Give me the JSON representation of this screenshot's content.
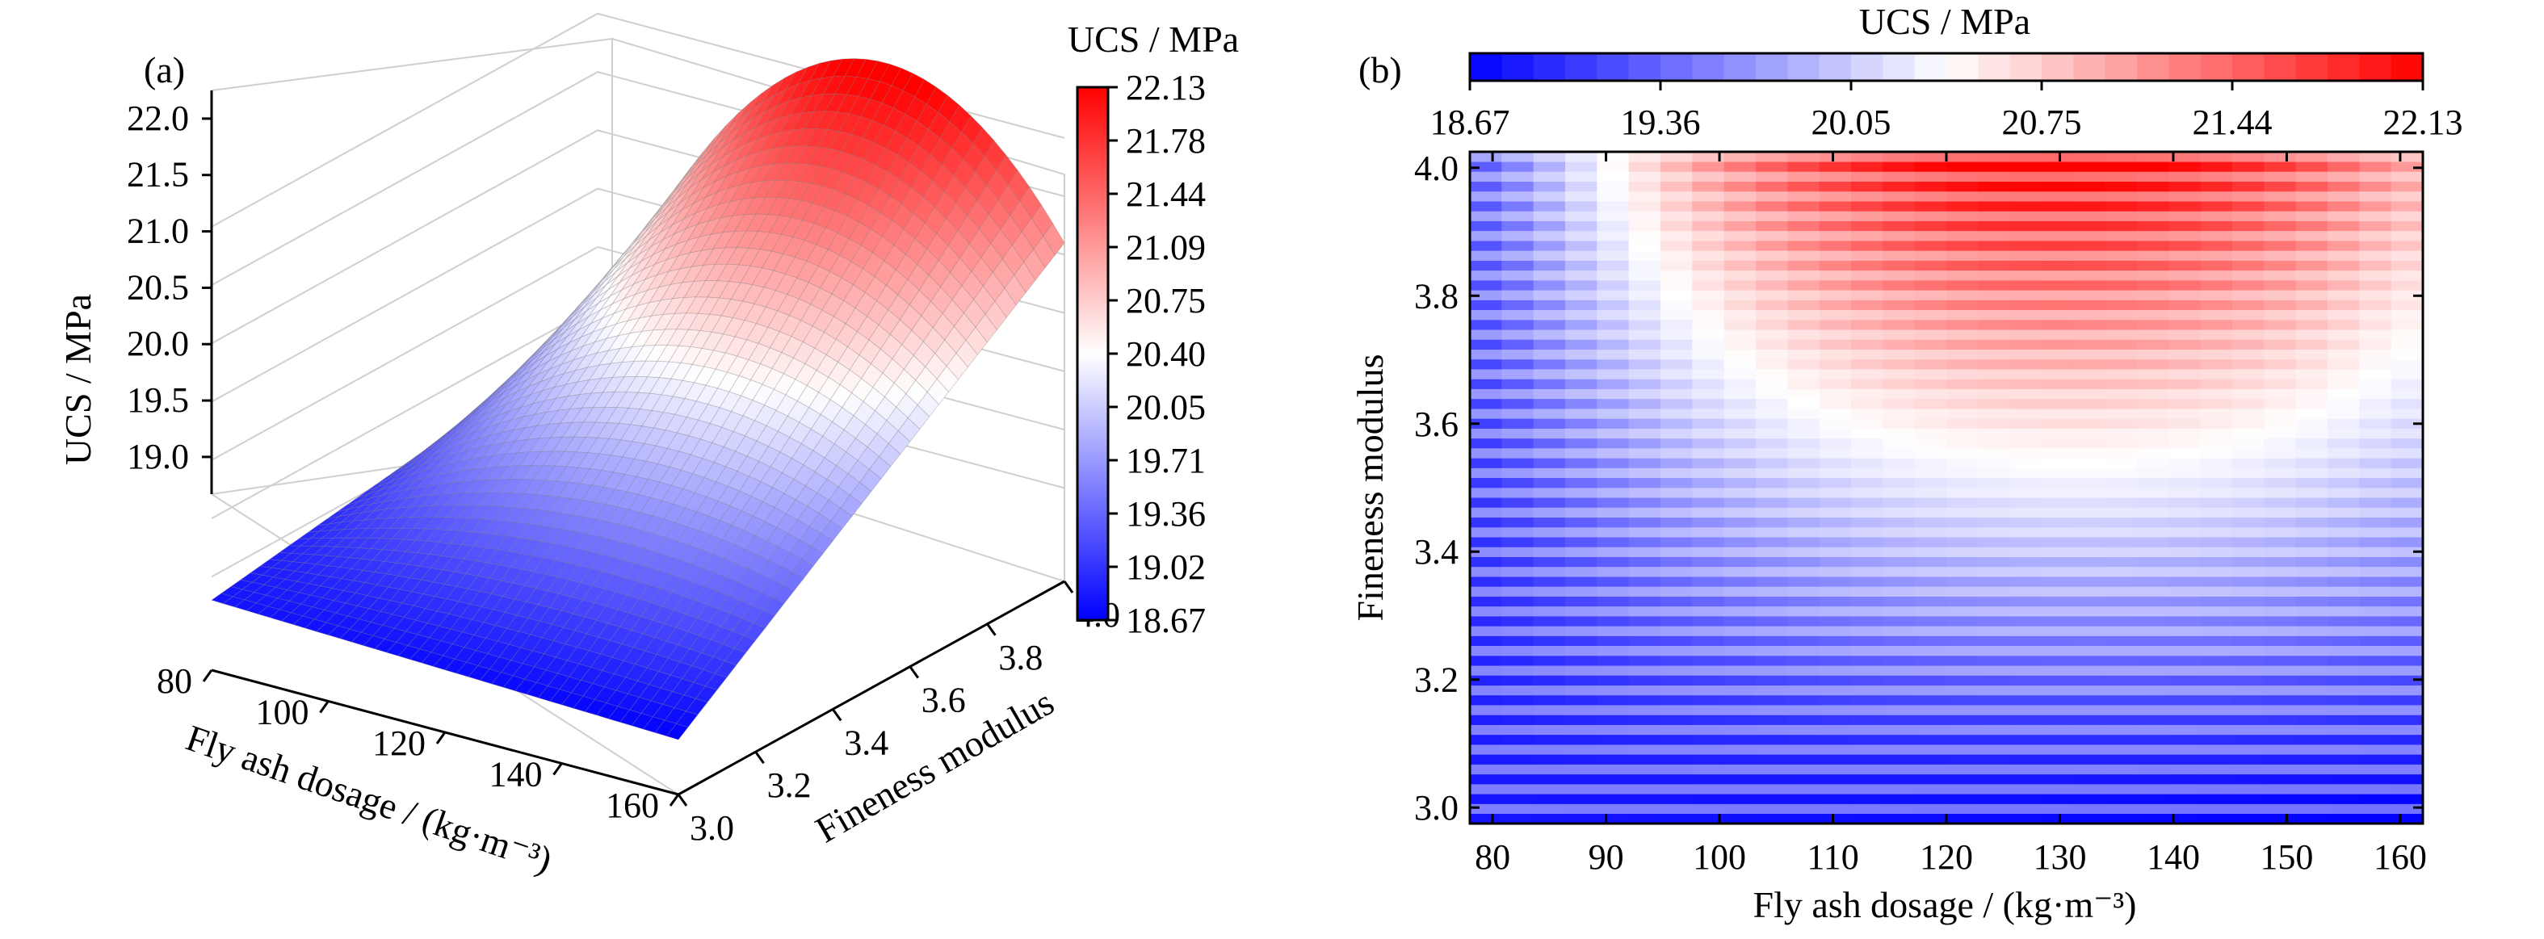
{
  "figure": {
    "panel_a_label": "(a)",
    "panel_b_label": "(b)"
  },
  "colors": {
    "low": "#0000ff",
    "mid": "#ffffff",
    "high": "#ff0000"
  },
  "chart_data": [
    {
      "type": "surface",
      "title": "",
      "xlabel": "Fly ash dosage / (kg·m⁻³)",
      "ylabel": "Fineness modulus",
      "zlabel": "UCS / MPa",
      "x_range": [
        80,
        160
      ],
      "y_range": [
        3.0,
        4.0
      ],
      "z_range": [
        18.67,
        22.13
      ],
      "x_ticks": [
        "80",
        "100",
        "120",
        "140",
        "160"
      ],
      "y_ticks": [
        "3.0",
        "3.2",
        "3.4",
        "3.6",
        "3.8",
        "4.0"
      ],
      "z_ticks": [
        "19.0",
        "19.5",
        "20.0",
        "20.5",
        "21.0",
        "21.5",
        "22.0"
      ],
      "corner_values": [
        {
          "x": 80,
          "y": 3.0,
          "z": 18.8
        },
        {
          "x": 160,
          "y": 3.0,
          "z": 18.67
        },
        {
          "x": 80,
          "y": 4.0,
          "z": 19.3
        },
        {
          "x": 160,
          "y": 4.0,
          "z": 21.1
        }
      ],
      "peak": {
        "x": 120,
        "y": 4.0,
        "z": 22.13
      },
      "colorbar": {
        "title": "UCS / MPa",
        "ticks": [
          "22.13",
          "21.78",
          "21.44",
          "21.09",
          "20.75",
          "20.40",
          "20.05",
          "19.71",
          "19.36",
          "19.02",
          "18.67"
        ]
      },
      "grid": true
    },
    {
      "type": "heatmap",
      "title": "",
      "xlabel": "Fly ash dosage / (kg·m⁻³)",
      "ylabel": "Fineness modulus",
      "x_range": [
        80,
        160
      ],
      "y_range": [
        3.0,
        4.0
      ],
      "x_ticks": [
        "80",
        "90",
        "100",
        "110",
        "120",
        "130",
        "140",
        "150",
        "160"
      ],
      "y_ticks": [
        "3.0",
        "3.2",
        "3.4",
        "3.6",
        "3.8",
        "4.0"
      ],
      "value_range": [
        18.67,
        22.13
      ],
      "colorbar": {
        "title": "UCS / MPa",
        "placement": "top",
        "ticks": [
          "18.67",
          "19.36",
          "20.05",
          "20.75",
          "21.44",
          "22.13"
        ]
      },
      "grid": false
    }
  ]
}
